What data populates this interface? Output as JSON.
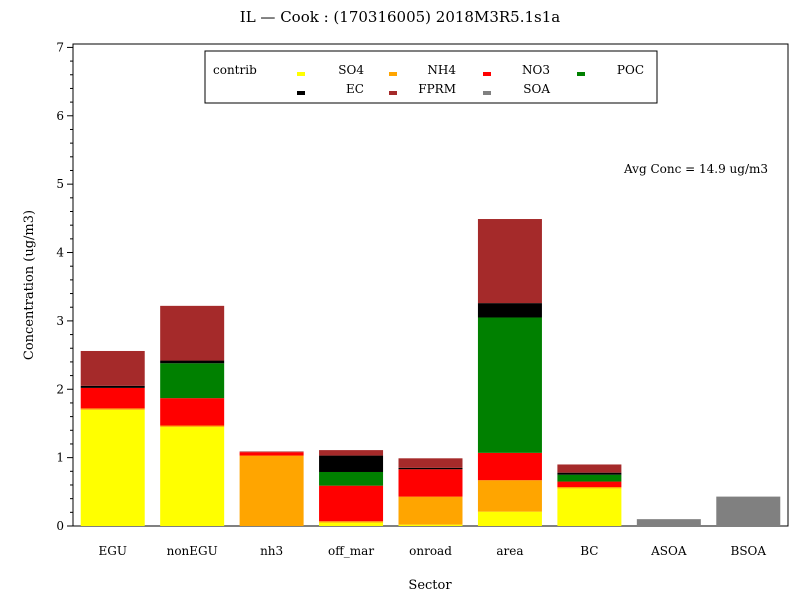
{
  "chart_data": {
    "type": "bar",
    "stacked": true,
    "title": "IL — Cook : (170316005) 2018M3R5.1s1a",
    "xlabel": "Sector",
    "ylabel": "Concentration (ug/m3)",
    "ylim": [
      0,
      7.05
    ],
    "yticks": [
      0,
      1,
      2,
      3,
      4,
      5,
      6,
      7
    ],
    "grid": false,
    "legend_title": "contrib",
    "legend_position": "top",
    "annotation": "Avg Conc = 14.9 ug/m3",
    "categories": [
      "EGU",
      "nonEGU",
      "nh3",
      "off_mar",
      "onroad",
      "area",
      "BC",
      "ASOA",
      "BSOA"
    ],
    "series": [
      {
        "name": "SO4",
        "color": "#ffff00",
        "values": [
          1.7,
          1.45,
          0.0,
          0.05,
          0.02,
          0.21,
          0.55,
          0.0,
          0.0
        ]
      },
      {
        "name": "NH4",
        "color": "#ffa500",
        "values": [
          0.02,
          0.02,
          1.03,
          0.02,
          0.41,
          0.46,
          0.02,
          0.0,
          0.0
        ]
      },
      {
        "name": "NO3",
        "color": "#ff0000",
        "values": [
          0.3,
          0.4,
          0.05,
          0.52,
          0.4,
          0.4,
          0.08,
          0.0,
          0.0
        ]
      },
      {
        "name": "POC",
        "color": "#008000",
        "values": [
          0.0,
          0.51,
          0.0,
          0.2,
          0.0,
          1.98,
          0.1,
          0.0,
          0.0
        ]
      },
      {
        "name": "EC",
        "color": "#000000",
        "values": [
          0.03,
          0.04,
          0.0,
          0.24,
          0.02,
          0.21,
          0.03,
          0.0,
          0.0
        ]
      },
      {
        "name": "FPRM",
        "color": "#a52a2a",
        "values": [
          0.51,
          0.8,
          0.01,
          0.08,
          0.14,
          1.23,
          0.12,
          0.0,
          0.0
        ]
      },
      {
        "name": "SOA",
        "color": "#808080",
        "values": [
          0.0,
          0.0,
          0.0,
          0.0,
          0.0,
          0.0,
          0.0,
          0.1,
          0.43
        ]
      }
    ]
  }
}
